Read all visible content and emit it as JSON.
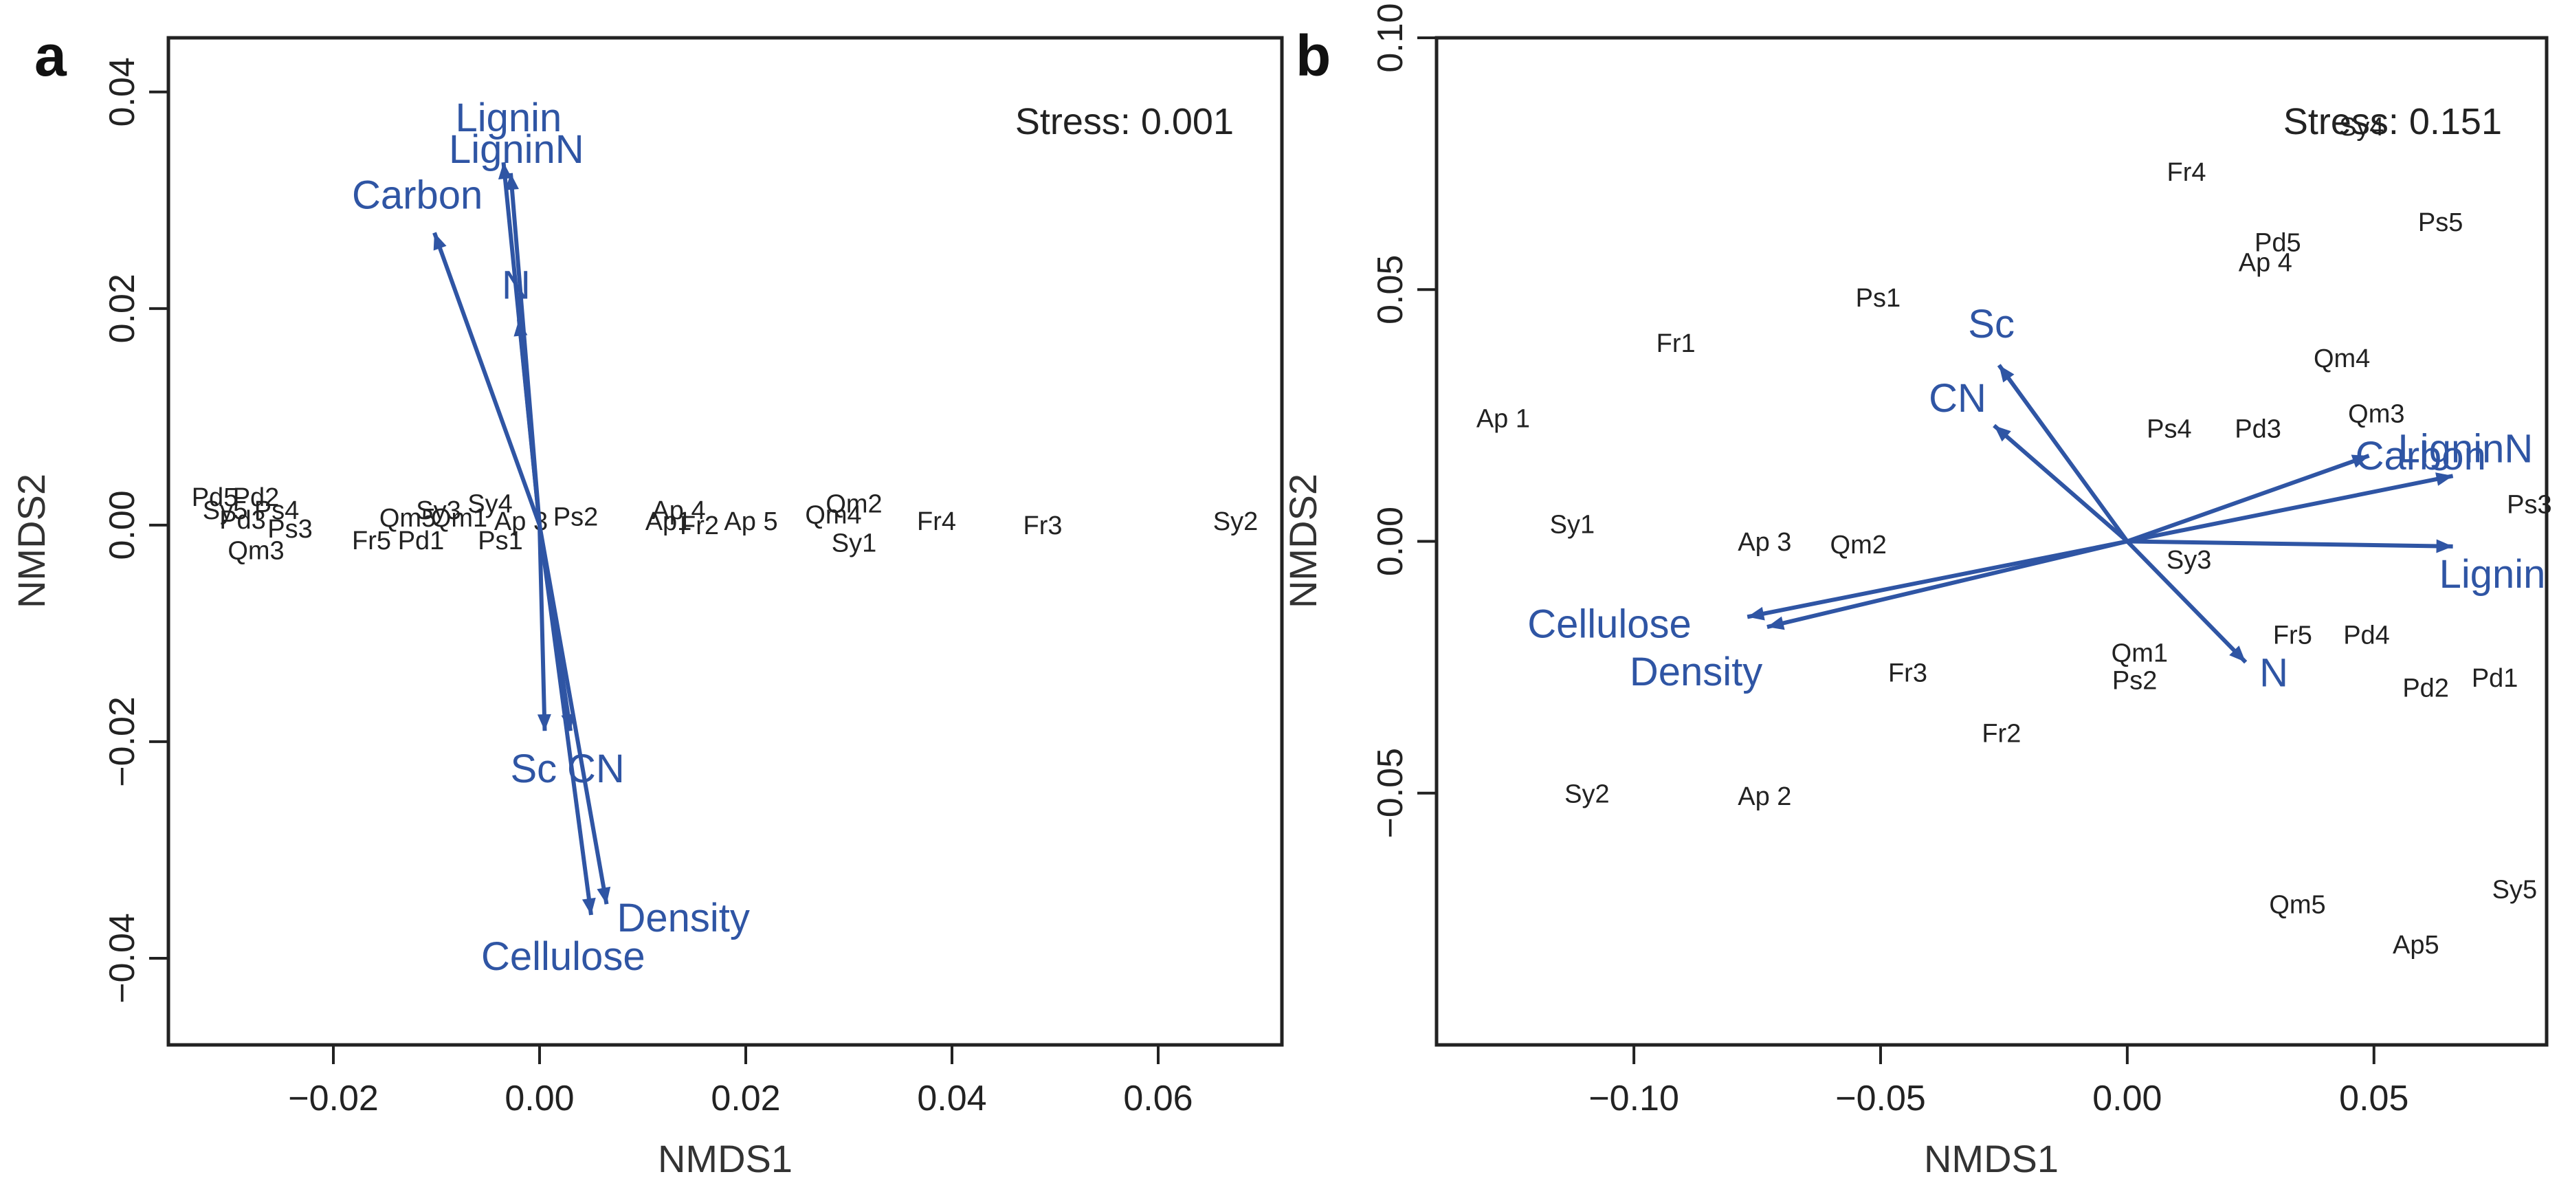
{
  "colors": {
    "vector": "#2f55a4",
    "text": "#222222",
    "axis": "#222222"
  },
  "chart_data": [
    {
      "panel": "a",
      "type": "scatter",
      "xlabel": "NMDS1",
      "ylabel": "NMDS2",
      "stress_label": "Stress: 0.001",
      "xlim": [
        -0.036,
        0.072
      ],
      "ylim": [
        -0.048,
        0.045
      ],
      "xticks": [
        -0.02,
        0.0,
        0.02,
        0.04,
        0.06
      ],
      "xtick_labels": [
        "−0.02",
        "0.00",
        "0.02",
        "0.04",
        "0.06"
      ],
      "yticks": [
        -0.04,
        -0.02,
        0.0,
        0.02,
        0.04
      ],
      "ytick_labels": [
        "−0.04",
        "−0.02",
        "0.00",
        "0.02",
        "0.04"
      ],
      "grid": false,
      "points": [
        {
          "label": "Pd5",
          "x": -0.0315,
          "y": 0.0024
        },
        {
          "label": "Pd2",
          "x": -0.0275,
          "y": 0.0024
        },
        {
          "label": "Sy5",
          "x": -0.0305,
          "y": 0.0012
        },
        {
          "label": "Ps4",
          "x": -0.0255,
          "y": 0.0012
        },
        {
          "label": "Pd3",
          "x": -0.0288,
          "y": 0.0003
        },
        {
          "label": "Ps3",
          "x": -0.0242,
          "y": -0.0005
        },
        {
          "label": "Qm3",
          "x": -0.0275,
          "y": -0.0025
        },
        {
          "label": "Fr5",
          "x": -0.0163,
          "y": -0.0016
        },
        {
          "label": "Pd1",
          "x": -0.0115,
          "y": -0.0016
        },
        {
          "label": "Qm5",
          "x": -0.0128,
          "y": 0.0005
        },
        {
          "label": "Sy3",
          "x": -0.0098,
          "y": 0.0012
        },
        {
          "label": "Qm1",
          "x": -0.0078,
          "y": 0.0005
        },
        {
          "label": "Sy4",
          "x": -0.0048,
          "y": 0.0018
        },
        {
          "label": "Ps1",
          "x": -0.0038,
          "y": -0.0016
        },
        {
          "label": "Ap 3",
          "x": -0.0018,
          "y": 0.0002
        },
        {
          "label": "Ps2",
          "x": 0.0035,
          "y": 0.0006
        },
        {
          "label": "Ap 4",
          "x": 0.0135,
          "y": 0.0012
        },
        {
          "label": "Ap1",
          "x": 0.0125,
          "y": 0.0002
        },
        {
          "label": "Fr2",
          "x": 0.0155,
          "y": -0.0002
        },
        {
          "label": "Ap 5",
          "x": 0.0205,
          "y": 0.0002
        },
        {
          "label": "Qm2",
          "x": 0.0305,
          "y": 0.0018
        },
        {
          "label": "Qm4",
          "x": 0.0285,
          "y": 0.0008
        },
        {
          "label": "Sy1",
          "x": 0.0305,
          "y": -0.0018
        },
        {
          "label": "Fr4",
          "x": 0.0385,
          "y": 0.0002
        },
        {
          "label": "Fr3",
          "x": 0.0488,
          "y": -0.0002
        },
        {
          "label": "Sy2",
          "x": 0.0675,
          "y": 0.0002
        }
      ],
      "vectors": [
        {
          "label": "Lignin",
          "x": -0.0035,
          "y": 0.0335
        },
        {
          "label": "LigninN",
          "x": -0.0028,
          "y": 0.0325
        },
        {
          "label": "Carbon",
          "x": -0.0102,
          "y": 0.027
        },
        {
          "label": "N",
          "x": -0.002,
          "y": 0.019
        },
        {
          "label": "Sc",
          "x": 0.0005,
          "y": -0.019
        },
        {
          "label": "CN",
          "x": 0.003,
          "y": -0.019
        },
        {
          "label": "Cellulose",
          "x": 0.005,
          "y": -0.036
        },
        {
          "label": "Density",
          "x": 0.0065,
          "y": -0.035
        }
      ]
    },
    {
      "panel": "b",
      "type": "scatter",
      "xlabel": "NMDS1",
      "ylabel": "NMDS2",
      "stress_label": "Stress: 0.151",
      "xlim": [
        -0.14,
        0.085
      ],
      "ylim": [
        -0.1,
        0.1
      ],
      "xticks": [
        -0.1,
        -0.05,
        0.0,
        0.05
      ],
      "xtick_labels": [
        "−0.10",
        "−0.05",
        "0.00",
        "0.05"
      ],
      "yticks": [
        -0.05,
        0.0,
        0.05,
        0.1
      ],
      "ytick_labels": [
        "−0.05",
        "0.00",
        "0.05",
        "0.10"
      ],
      "grid": false,
      "points": [
        {
          "label": "Sy4",
          "x": 0.0475,
          "y": 0.082
        },
        {
          "label": "Fr4",
          "x": 0.012,
          "y": 0.073
        },
        {
          "label": "Pd5",
          "x": 0.0305,
          "y": 0.059
        },
        {
          "label": "Ap 4",
          "x": 0.028,
          "y": 0.055
        },
        {
          "label": "Ps5",
          "x": 0.0635,
          "y": 0.063
        },
        {
          "label": "Ps1",
          "x": -0.0505,
          "y": 0.048
        },
        {
          "label": "Fr1",
          "x": -0.0915,
          "y": 0.039
        },
        {
          "label": "Qm4",
          "x": 0.0435,
          "y": 0.036
        },
        {
          "label": "Ap 1",
          "x": -0.1265,
          "y": 0.024
        },
        {
          "label": "Ps4",
          "x": 0.0085,
          "y": 0.022
        },
        {
          "label": "Pd3",
          "x": 0.0265,
          "y": 0.022
        },
        {
          "label": "Qm3",
          "x": 0.0505,
          "y": 0.025
        },
        {
          "label": "Ps3",
          "x": 0.0815,
          "y": 0.007
        },
        {
          "label": "Sy1",
          "x": -0.1125,
          "y": 0.003
        },
        {
          "label": "Ap 3",
          "x": -0.0735,
          "y": -0.0005
        },
        {
          "label": "Qm2",
          "x": -0.0545,
          "y": -0.001
        },
        {
          "label": "Sy3",
          "x": 0.0125,
          "y": -0.004
        },
        {
          "label": "Fr5",
          "x": 0.0335,
          "y": -0.019
        },
        {
          "label": "Pd4",
          "x": 0.0485,
          "y": -0.019
        },
        {
          "label": "Qm1",
          "x": 0.0025,
          "y": -0.0225
        },
        {
          "label": "Ps2",
          "x": 0.0015,
          "y": -0.028
        },
        {
          "label": "Pd2",
          "x": 0.0605,
          "y": -0.0295
        },
        {
          "label": "Pd1",
          "x": 0.0745,
          "y": -0.0275
        },
        {
          "label": "Fr3",
          "x": -0.0445,
          "y": -0.0265
        },
        {
          "label": "Fr2",
          "x": -0.0255,
          "y": -0.0385
        },
        {
          "label": "Sy2",
          "x": -0.1095,
          "y": -0.0505
        },
        {
          "label": "Ap 2",
          "x": -0.0735,
          "y": -0.051
        },
        {
          "label": "Qm5",
          "x": 0.0345,
          "y": -0.0725
        },
        {
          "label": "Sy5",
          "x": 0.0785,
          "y": -0.0695
        },
        {
          "label": "Ap5",
          "x": 0.0585,
          "y": -0.0805
        }
      ],
      "vectors": [
        {
          "label": "Sc",
          "x": -0.026,
          "y": 0.035
        },
        {
          "label": "CN",
          "x": -0.027,
          "y": 0.023
        },
        {
          "label": "Carbon",
          "x": 0.049,
          "y": 0.017
        },
        {
          "label": "LigninN",
          "x": 0.066,
          "y": 0.013
        },
        {
          "label": "Lignin",
          "x": 0.066,
          "y": -0.001
        },
        {
          "label": "N",
          "x": 0.024,
          "y": -0.024
        },
        {
          "label": "Cellulose",
          "x": -0.077,
          "y": -0.015
        },
        {
          "label": "Density",
          "x": -0.073,
          "y": -0.017
        }
      ]
    }
  ]
}
